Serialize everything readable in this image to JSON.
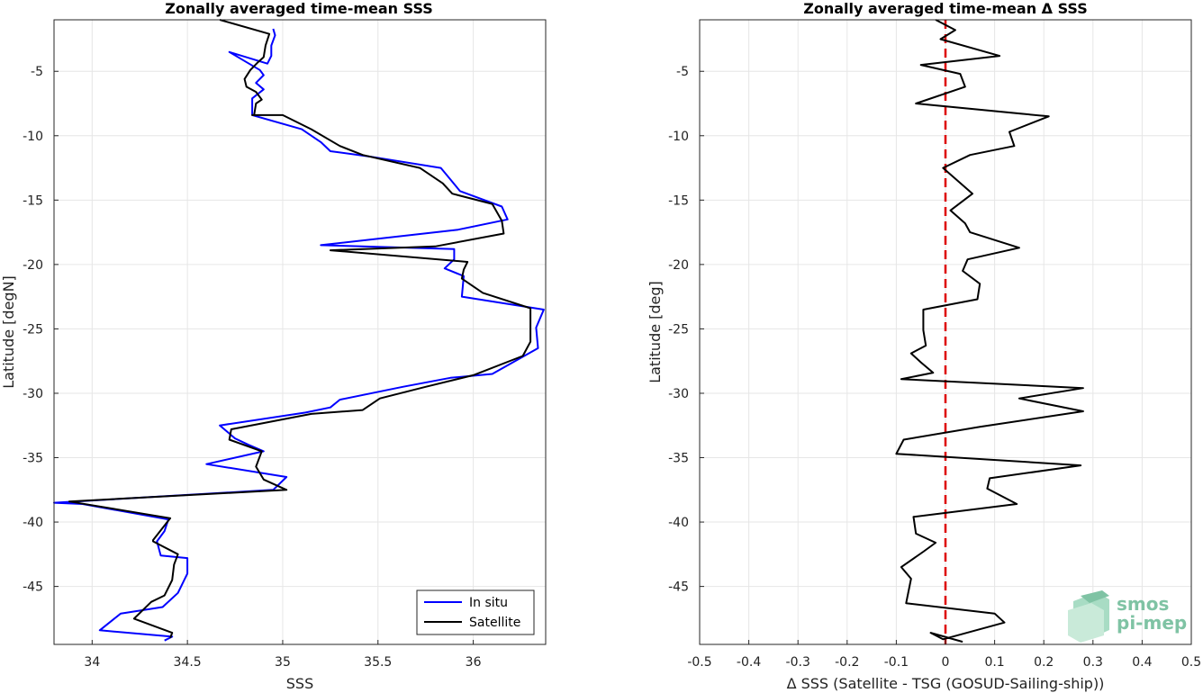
{
  "chart_data": [
    {
      "type": "line",
      "title": "Zonally averaged time-mean SSS",
      "xlabel": "SSS",
      "ylabel": "Latitude [degN]",
      "xlim": [
        33.8,
        36.38
      ],
      "ylim": [
        -49.5,
        -1
      ],
      "xticks": [
        34,
        34.5,
        35,
        35.5,
        36
      ],
      "xtick_labels": [
        "34",
        "34.5",
        "35",
        "35.5",
        "36"
      ],
      "yticks": [
        -5,
        -10,
        -15,
        -20,
        -25,
        -30,
        -35,
        -40,
        -45
      ],
      "ytick_labels": [
        "-5",
        "-10",
        "-15",
        "-20",
        "-25",
        "-30",
        "-35",
        "-40",
        "-45"
      ],
      "grid": true,
      "legend": {
        "position": "bottom-right",
        "entries": [
          "In situ",
          "Satellite"
        ]
      },
      "series": [
        {
          "name": "In situ",
          "color": "#0000ff",
          "x": [
            34.95,
            34.96,
            34.94,
            34.94,
            34.92,
            34.72,
            34.88,
            34.9,
            34.86,
            34.9,
            34.84,
            34.84,
            34.84,
            35.1,
            35.2,
            35.25,
            35.45,
            35.83,
            35.88,
            35.93,
            36.15,
            36.18,
            35.92,
            35.2,
            35.9,
            35.9,
            35.85,
            35.95,
            35.94,
            36.37,
            36.33,
            36.34,
            36.1,
            35.88,
            35.63,
            35.3,
            35.25,
            35.12,
            34.67,
            34.75,
            34.82,
            34.9,
            34.6,
            35.02,
            34.95,
            33.8,
            33.95,
            34.4,
            34.38,
            34.34,
            34.36,
            34.5,
            34.5,
            34.45,
            34.37,
            34.15,
            34.04,
            34.42,
            34.38
          ],
          "y": [
            -1.7,
            -2.2,
            -3,
            -3.8,
            -4.4,
            -3.5,
            -4.9,
            -5.3,
            -5.9,
            -6.4,
            -7.1,
            -7.6,
            -8.4,
            -9.5,
            -10.5,
            -11.2,
            -11.6,
            -12.5,
            -13.4,
            -14.3,
            -15.5,
            -16.5,
            -17.3,
            -18.5,
            -18.8,
            -19.6,
            -20.3,
            -20.9,
            -22.5,
            -23.5,
            -24.9,
            -26.5,
            -28.5,
            -28.8,
            -29.5,
            -30.5,
            -31.1,
            -31.5,
            -32.5,
            -33.5,
            -34,
            -34.5,
            -35.5,
            -36.5,
            -37.5,
            -38.5,
            -38.6,
            -39.8,
            -40.7,
            -41.5,
            -42.6,
            -42.8,
            -44,
            -45.5,
            -46.6,
            -47.1,
            -48.4,
            -48.9,
            -49.2
          ]
        },
        {
          "name": "Satellite",
          "color": "#000000",
          "x": [
            34.67,
            34.93,
            34.91,
            34.9,
            34.87,
            34.83,
            34.8,
            34.81,
            34.86,
            34.89,
            34.86,
            34.85,
            34.84,
            35,
            35.15,
            35.3,
            35.42,
            35.72,
            35.84,
            35.89,
            36.1,
            36.15,
            36.16,
            35.8,
            35.25,
            35.97,
            35.95,
            35.94,
            36.05,
            36.3,
            36.3,
            36.3,
            36.26,
            36.0,
            35.75,
            35.51,
            35.42,
            35.15,
            34.73,
            34.72,
            34.89,
            34.86,
            34.9,
            35.02,
            33.88,
            34.41,
            34.32,
            34.32,
            34.45,
            34.43,
            34.42,
            34.38,
            34.31,
            34.22,
            34.42,
            34.41
          ],
          "y": [
            -1,
            -2.1,
            -3,
            -3.9,
            -4.3,
            -4.9,
            -5.6,
            -6.2,
            -6.6,
            -7.2,
            -7.5,
            -8.4,
            -8.4,
            -8.4,
            -9.5,
            -10.8,
            -11.5,
            -12.5,
            -13.7,
            -14.5,
            -15.3,
            -16.6,
            -17.6,
            -18.6,
            -18.9,
            -19.8,
            -20.4,
            -21.1,
            -22.2,
            -23.4,
            -25.5,
            -26,
            -27.1,
            -28.6,
            -29.5,
            -30.4,
            -31.3,
            -31.6,
            -32.8,
            -33.6,
            -34.5,
            -35.7,
            -36.7,
            -37.5,
            -38.4,
            -39.7,
            -41.4,
            -41.5,
            -42.5,
            -43.3,
            -44.5,
            -45.7,
            -46.2,
            -47.5,
            -48.6,
            -49.0
          ]
        }
      ]
    },
    {
      "type": "line",
      "title": "Zonally averaged time-mean Δ SSS",
      "xlabel": "Δ SSS (Satellite - TSG (GOSUD-Sailing-ship))",
      "ylabel": "Latitude [deg]",
      "xlim": [
        -0.5,
        0.5
      ],
      "ylim": [
        -49.5,
        -1
      ],
      "xticks": [
        -0.5,
        -0.4,
        -0.3,
        -0.2,
        -0.1,
        0,
        0.1,
        0.2,
        0.3,
        0.4,
        0.5
      ],
      "xtick_labels": [
        "-0.5",
        "-0.4",
        "-0.3",
        "-0.2",
        "-0.1",
        "0",
        "0.1",
        "0.2",
        "0.3",
        "0.4",
        "0.5"
      ],
      "yticks": [
        -5,
        -10,
        -15,
        -20,
        -25,
        -30,
        -35,
        -40,
        -45
      ],
      "ytick_labels": [
        "-5",
        "-10",
        "-15",
        "-20",
        "-25",
        "-30",
        "-35",
        "-40",
        "-45"
      ],
      "grid": true,
      "reference_line": {
        "x": 0,
        "color": "#dd0000",
        "style": "dashed"
      },
      "series": [
        {
          "color": "#000000",
          "x": [
            -0.02,
            0.02,
            -0.01,
            0.11,
            -0.05,
            0.03,
            0.04,
            -0.06,
            0.21,
            0.13,
            0.14,
            0.05,
            -0.005,
            0.055,
            0.01,
            0.04,
            0.05,
            0.15,
            0.045,
            0.035,
            0.07,
            0.065,
            -0.045,
            -0.045,
            -0.04,
            -0.07,
            -0.05,
            -0.025,
            -0.09,
            0.28,
            0.15,
            0.28,
            0.07,
            -0.085,
            -0.1,
            0.275,
            0.09,
            0.085,
            0.145,
            -0.065,
            -0.06,
            -0.02,
            -0.045,
            -0.09,
            -0.07,
            -0.08,
            0.1,
            0.12,
            -0.005,
            -0.03,
            0.035
          ],
          "y": [
            -1,
            -1.8,
            -2.5,
            -3.8,
            -4.5,
            -5.2,
            -6.2,
            -7.5,
            -8.5,
            -9.7,
            -10.8,
            -11.5,
            -12.5,
            -14.5,
            -15.8,
            -16.8,
            -17.5,
            -18.7,
            -19.6,
            -20.5,
            -21.5,
            -22.7,
            -23.5,
            -25.1,
            -26.3,
            -26.9,
            -27.6,
            -28.4,
            -28.9,
            -29.6,
            -30.4,
            -31.4,
            -32.6,
            -33.6,
            -34.7,
            -35.6,
            -36.6,
            -37.4,
            -38.6,
            -39.6,
            -40.9,
            -41.6,
            -42.3,
            -43.5,
            -44.4,
            -46.3,
            -47.1,
            -47.8,
            -49.1,
            -48.6,
            -49.3
          ]
        }
      ]
    }
  ],
  "logo": {
    "line1": "smos",
    "line2": "pi-mep"
  }
}
